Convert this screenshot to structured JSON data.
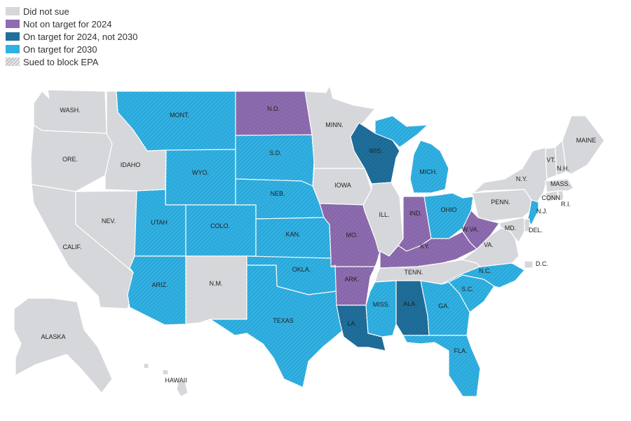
{
  "colors": {
    "did_not_sue": "#d5d7da",
    "not_2024": "#8e6cb1",
    "on_2024_not_2030": "#1f6f9c",
    "on_2030": "#30b1e4"
  },
  "legend": [
    {
      "label": "Did not sue",
      "color": "#d5d7da",
      "pattern": "none"
    },
    {
      "label": "Not on target for 2024",
      "color": "#8e6cb1",
      "pattern": "none"
    },
    {
      "label": "On target for 2024, not 2030",
      "color": "#1f6f9c",
      "pattern": "none"
    },
    {
      "label": "On target for 2030",
      "color": "#30b1e4",
      "pattern": "none"
    },
    {
      "label": "Sued to block EPA",
      "color": "#ffffff",
      "pattern": "hatch"
    }
  ],
  "states": [
    {
      "abbr": "WA",
      "label": "WASH.",
      "status": "did_not_sue",
      "sued": false
    },
    {
      "abbr": "OR",
      "label": "ORE.",
      "status": "did_not_sue",
      "sued": false
    },
    {
      "abbr": "CA",
      "label": "CALIF.",
      "status": "did_not_sue",
      "sued": false
    },
    {
      "abbr": "NV",
      "label": "NEV.",
      "status": "did_not_sue",
      "sued": false
    },
    {
      "abbr": "ID",
      "label": "IDAHO",
      "status": "did_not_sue",
      "sued": false
    },
    {
      "abbr": "MT",
      "label": "MONT.",
      "status": "on_2030",
      "sued": true
    },
    {
      "abbr": "WY",
      "label": "WYO.",
      "status": "on_2030",
      "sued": true
    },
    {
      "abbr": "UT",
      "label": "UTAH",
      "status": "on_2030",
      "sued": true
    },
    {
      "abbr": "AZ",
      "label": "ARIZ.",
      "status": "on_2030",
      "sued": true
    },
    {
      "abbr": "CO",
      "label": "COLO.",
      "status": "on_2030",
      "sued": true
    },
    {
      "abbr": "NM",
      "label": "N.M.",
      "status": "did_not_sue",
      "sued": false
    },
    {
      "abbr": "ND",
      "label": "N.D.",
      "status": "not_2024",
      "sued": true
    },
    {
      "abbr": "SD",
      "label": "S.D.",
      "status": "on_2030",
      "sued": true
    },
    {
      "abbr": "NE",
      "label": "NEB.",
      "status": "on_2030",
      "sued": true
    },
    {
      "abbr": "KS",
      "label": "KAN.",
      "status": "on_2030",
      "sued": true
    },
    {
      "abbr": "OK",
      "label": "OKLA.",
      "status": "on_2030",
      "sued": true
    },
    {
      "abbr": "TX",
      "label": "TEXAS",
      "status": "on_2030",
      "sued": true
    },
    {
      "abbr": "MN",
      "label": "MINN.",
      "status": "did_not_sue",
      "sued": false
    },
    {
      "abbr": "IA",
      "label": "IOWA",
      "status": "did_not_sue",
      "sued": false
    },
    {
      "abbr": "MO",
      "label": "MO.",
      "status": "not_2024",
      "sued": true
    },
    {
      "abbr": "AR",
      "label": "ARK.",
      "status": "not_2024",
      "sued": true
    },
    {
      "abbr": "LA",
      "label": "LA.",
      "status": "on_2024_not_2030",
      "sued": true
    },
    {
      "abbr": "WI",
      "label": "WIS.",
      "status": "on_2024_not_2030",
      "sued": true
    },
    {
      "abbr": "IL",
      "label": "ILL.",
      "status": "did_not_sue",
      "sued": false
    },
    {
      "abbr": "MI",
      "label": "MICH.",
      "status": "on_2030",
      "sued": true
    },
    {
      "abbr": "IN",
      "label": "IND.",
      "status": "not_2024",
      "sued": true
    },
    {
      "abbr": "OH",
      "label": "OHIO",
      "status": "on_2030",
      "sued": true
    },
    {
      "abbr": "KY",
      "label": "KY.",
      "status": "not_2024",
      "sued": true
    },
    {
      "abbr": "TN",
      "label": "TENN.",
      "status": "did_not_sue",
      "sued": false
    },
    {
      "abbr": "MS",
      "label": "MISS.",
      "status": "on_2030",
      "sued": true
    },
    {
      "abbr": "AL",
      "label": "ALA.",
      "status": "on_2024_not_2030",
      "sued": true
    },
    {
      "abbr": "GA",
      "label": "GA.",
      "status": "on_2030",
      "sued": true
    },
    {
      "abbr": "FL",
      "label": "FLA.",
      "status": "on_2030",
      "sued": true
    },
    {
      "abbr": "SC",
      "label": "S.C.",
      "status": "on_2030",
      "sued": true
    },
    {
      "abbr": "NC",
      "label": "N.C.",
      "status": "on_2030",
      "sued": true
    },
    {
      "abbr": "VA",
      "label": "VA.",
      "status": "did_not_sue",
      "sued": false
    },
    {
      "abbr": "WV",
      "label": "W.VA.",
      "status": "not_2024",
      "sued": true
    },
    {
      "abbr": "PA",
      "label": "PENN.",
      "status": "did_not_sue",
      "sued": false
    },
    {
      "abbr": "NY",
      "label": "N.Y.",
      "status": "did_not_sue",
      "sued": false
    },
    {
      "abbr": "NJ",
      "label": "N.J.",
      "status": "on_2030",
      "sued": true
    },
    {
      "abbr": "DE",
      "label": "DEL.",
      "status": "did_not_sue",
      "sued": false
    },
    {
      "abbr": "MD",
      "label": "MD.",
      "status": "did_not_sue",
      "sued": false
    },
    {
      "abbr": "DC",
      "label": "D.C.",
      "status": "did_not_sue",
      "sued": false
    },
    {
      "abbr": "CT",
      "label": "CONN.",
      "status": "did_not_sue",
      "sued": false
    },
    {
      "abbr": "RI",
      "label": "R.I.",
      "status": "did_not_sue",
      "sued": false
    },
    {
      "abbr": "MA",
      "label": "MASS.",
      "status": "did_not_sue",
      "sued": false
    },
    {
      "abbr": "VT",
      "label": "VT.",
      "status": "did_not_sue",
      "sued": false
    },
    {
      "abbr": "NH",
      "label": "N.H.",
      "status": "did_not_sue",
      "sued": false
    },
    {
      "abbr": "ME",
      "label": "MAINE",
      "status": "did_not_sue",
      "sued": false
    },
    {
      "abbr": "AK",
      "label": "ALASKA",
      "status": "did_not_sue",
      "sued": false
    },
    {
      "abbr": "HI",
      "label": "HAWAII",
      "status": "did_not_sue",
      "sued": false
    }
  ]
}
